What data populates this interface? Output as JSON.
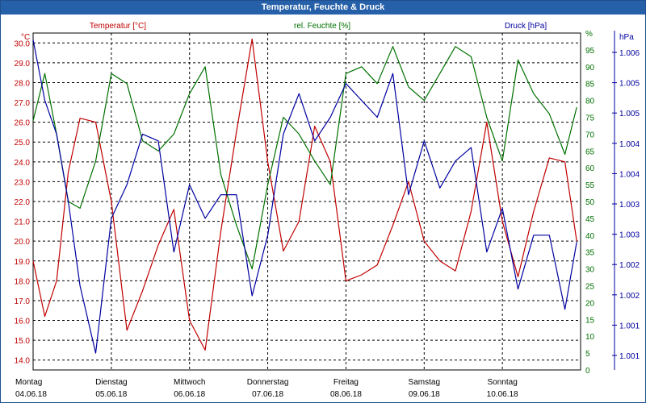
{
  "window": {
    "title": "Temperatur, Feuchte & Druck"
  },
  "colors": {
    "temperature": "#c00000",
    "humidity": "#007000",
    "pressure": "#0000a0",
    "grid": "#000000",
    "frame": "#2660a8"
  },
  "chart_data": {
    "type": "line",
    "title": "Temperatur, Feuchte & Druck",
    "legend": [
      "Temperatur [°C]",
      "rel. Feuchte [%]",
      "Druck [hPa]"
    ],
    "x_range_days": [
      0,
      7
    ],
    "x_ticks": [
      {
        "day": "Montag",
        "date": "04.06.18"
      },
      {
        "day": "Dienstag",
        "date": "05.06.18"
      },
      {
        "day": "Mittwoch",
        "date": "06.06.18"
      },
      {
        "day": "Donnerstag",
        "date": "07.06.18"
      },
      {
        "day": "Freitag",
        "date": "08.06.18"
      },
      {
        "day": "Samstag",
        "date": "09.06.18"
      },
      {
        "day": "Sonntag",
        "date": "10.06.18"
      }
    ],
    "axes": {
      "left": {
        "unit": "°C",
        "min": 13.5,
        "max": 30.5,
        "ticks": [
          "14.0",
          "15.0",
          "16.0",
          "17.0",
          "18.0",
          "19.0",
          "20.0",
          "21.0",
          "22.0",
          "23.0",
          "24.0",
          "25.0",
          "26.0",
          "27.0",
          "28.0",
          "29.0",
          "30.0"
        ]
      },
      "right1": {
        "unit": "%",
        "min": 0,
        "max": 100,
        "ticks": [
          "0",
          "5",
          "10",
          "15",
          "20",
          "25",
          "30",
          "35",
          "40",
          "45",
          "50",
          "55",
          "60",
          "65",
          "70",
          "75",
          "80",
          "85",
          "90",
          "95",
          "%"
        ]
      },
      "right2": {
        "unit": "hPa",
        "ticks": [
          "1.006",
          "1.005",
          "1.005",
          "1.004",
          "1.004",
          "1.003",
          "1.003",
          "1.002",
          "1.002",
          "1.001",
          "1.001"
        ]
      }
    },
    "series": [
      {
        "name": "Temperatur [°C]",
        "axis": "left",
        "x": [
          0,
          0.15,
          0.3,
          0.45,
          0.6,
          0.8,
          1.0,
          1.2,
          1.4,
          1.6,
          1.8,
          2.0,
          2.2,
          2.4,
          2.6,
          2.8,
          3.0,
          3.2,
          3.4,
          3.6,
          3.8,
          4.0,
          4.2,
          4.4,
          4.6,
          4.8,
          5.0,
          5.2,
          5.4,
          5.6,
          5.8,
          6.0,
          6.2,
          6.4,
          6.6,
          6.8,
          6.95
        ],
        "values": [
          19.0,
          16.2,
          18.0,
          23.5,
          26.2,
          26.0,
          22.0,
          15.5,
          17.5,
          19.8,
          21.6,
          16.0,
          14.5,
          20.5,
          25.5,
          30.2,
          24.0,
          19.5,
          21.0,
          25.8,
          24.0,
          18.0,
          18.3,
          18.8,
          20.8,
          23.0,
          20.0,
          19.0,
          18.5,
          21.5,
          26.0,
          21.0,
          18.2,
          21.5,
          24.2,
          24.0,
          20.0
        ]
      },
      {
        "name": "rel. Feuchte [%]",
        "axis": "right1",
        "x": [
          0,
          0.15,
          0.3,
          0.45,
          0.6,
          0.8,
          1.0,
          1.2,
          1.4,
          1.6,
          1.8,
          2.0,
          2.2,
          2.4,
          2.6,
          2.8,
          3.0,
          3.2,
          3.4,
          3.6,
          3.8,
          4.0,
          4.2,
          4.4,
          4.6,
          4.8,
          5.0,
          5.2,
          5.4,
          5.6,
          5.8,
          6.0,
          6.2,
          6.4,
          6.6,
          6.8,
          6.95
        ],
        "values": [
          74,
          88,
          70,
          50,
          48,
          62,
          88,
          85,
          68,
          65,
          70,
          82,
          90,
          58,
          43,
          30,
          55,
          75,
          70,
          62,
          55,
          88,
          90,
          85,
          96,
          84,
          80,
          88,
          96,
          93,
          75,
          62,
          92,
          82,
          76,
          64,
          78
        ]
      },
      {
        "name": "Druck [hPa]",
        "axis": "right1",
        "x": [
          0,
          0.15,
          0.3,
          0.45,
          0.6,
          0.8,
          1.0,
          1.2,
          1.4,
          1.6,
          1.8,
          2.0,
          2.2,
          2.4,
          2.6,
          2.8,
          3.0,
          3.2,
          3.4,
          3.6,
          3.8,
          4.0,
          4.2,
          4.4,
          4.6,
          4.8,
          5.0,
          5.2,
          5.4,
          5.6,
          5.8,
          6.0,
          6.2,
          6.4,
          6.6,
          6.8,
          6.95
        ],
        "values": [
          98,
          80,
          70,
          50,
          25,
          5,
          45,
          55,
          70,
          68,
          35,
          55,
          45,
          52,
          52,
          22,
          40,
          70,
          82,
          68,
          75,
          85,
          80,
          75,
          88,
          52,
          68,
          54,
          62,
          66,
          35,
          48,
          24,
          40,
          40,
          18,
          38
        ]
      }
    ]
  }
}
